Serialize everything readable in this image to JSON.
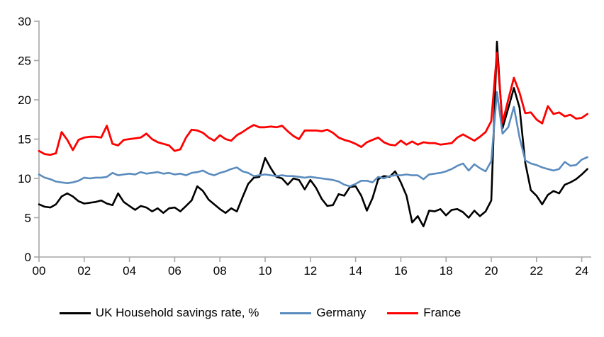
{
  "chart_data": {
    "type": "line",
    "title": "",
    "xlabel": "",
    "ylabel": "",
    "x_unit": "year (quarterly data)",
    "x_range": [
      2000.0,
      2024.25
    ],
    "ylim": [
      0,
      30
    ],
    "y_ticks": [
      0,
      5,
      10,
      15,
      20,
      25,
      30
    ],
    "x_tick_labels": [
      "00",
      "02",
      "04",
      "06",
      "08",
      "10",
      "12",
      "14",
      "16",
      "18",
      "20",
      "22",
      "24"
    ],
    "grid": "off",
    "legend_position": "bottom-center",
    "axis_color": "#a6a6a6",
    "tick_label_color": "#000000",
    "series": [
      {
        "name": "UK Household savings rate, %",
        "color": "#000000",
        "values": [
          6.7,
          6.4,
          6.3,
          6.7,
          7.7,
          8.1,
          7.7,
          7.1,
          6.8,
          6.9,
          7.0,
          7.2,
          6.8,
          6.6,
          8.1,
          7.0,
          6.5,
          6.0,
          6.5,
          6.3,
          5.8,
          6.2,
          5.6,
          6.2,
          6.3,
          5.8,
          6.5,
          7.2,
          9.0,
          8.4,
          7.3,
          6.7,
          6.1,
          5.6,
          6.2,
          5.8,
          7.6,
          9.3,
          10.1,
          10.2,
          12.6,
          11.3,
          10.2,
          10.0,
          9.2,
          10.0,
          9.8,
          8.6,
          9.8,
          8.8,
          7.4,
          6.5,
          6.6,
          8.0,
          7.8,
          8.9,
          9.0,
          7.8,
          5.9,
          7.5,
          9.9,
          10.3,
          10.2,
          10.9,
          9.5,
          7.8,
          4.4,
          5.2,
          3.9,
          5.9,
          5.8,
          6.1,
          5.3,
          6.0,
          6.1,
          5.7,
          5.0,
          5.9,
          5.2,
          5.8,
          7.2,
          27.4,
          16.4,
          18.9,
          21.5,
          19.0,
          12.0,
          8.5,
          7.8,
          6.7,
          7.9,
          8.4,
          8.1,
          9.2,
          9.5,
          9.9,
          10.5,
          11.2
        ]
      },
      {
        "name": "Germany",
        "color": "#5b8cbe",
        "values": [
          10.5,
          10.1,
          9.9,
          9.6,
          9.5,
          9.4,
          9.5,
          9.7,
          10.1,
          10.0,
          10.1,
          10.1,
          10.2,
          10.7,
          10.4,
          10.5,
          10.6,
          10.5,
          10.8,
          10.6,
          10.7,
          10.8,
          10.6,
          10.7,
          10.5,
          10.6,
          10.4,
          10.7,
          10.8,
          11.0,
          10.6,
          10.4,
          10.7,
          10.9,
          11.2,
          11.4,
          10.9,
          10.7,
          10.3,
          10.4,
          10.5,
          10.4,
          10.3,
          10.4,
          10.3,
          10.3,
          10.2,
          10.1,
          10.2,
          10.1,
          10.0,
          9.9,
          9.8,
          9.6,
          9.2,
          9.0,
          9.3,
          9.7,
          9.7,
          9.5,
          10.2,
          10.0,
          10.3,
          10.4,
          10.4,
          10.5,
          10.4,
          10.4,
          9.9,
          10.5,
          10.6,
          10.7,
          10.9,
          11.2,
          11.6,
          11.9,
          11.0,
          11.8,
          11.3,
          10.9,
          12.2,
          21.0,
          15.7,
          16.5,
          19.1,
          15.2,
          12.3,
          11.9,
          11.7,
          11.4,
          11.2,
          11.0,
          11.2,
          12.1,
          11.6,
          11.7,
          12.4,
          12.7
        ]
      },
      {
        "name": "France",
        "color": "#ff0000",
        "values": [
          13.5,
          13.1,
          13.0,
          13.2,
          15.9,
          14.9,
          13.6,
          14.9,
          15.2,
          15.3,
          15.3,
          15.2,
          16.7,
          14.4,
          14.2,
          14.9,
          15.0,
          15.1,
          15.2,
          15.7,
          15.0,
          14.6,
          14.4,
          14.2,
          13.5,
          13.7,
          15.2,
          16.2,
          16.1,
          15.8,
          15.2,
          14.8,
          15.5,
          15.0,
          14.8,
          15.5,
          15.9,
          16.4,
          16.8,
          16.5,
          16.5,
          16.6,
          16.5,
          16.7,
          16.0,
          15.4,
          15.0,
          16.1,
          16.1,
          16.1,
          16.0,
          16.2,
          15.8,
          15.2,
          14.9,
          14.7,
          14.4,
          14.0,
          14.6,
          14.9,
          15.2,
          14.6,
          14.3,
          14.2,
          14.8,
          14.3,
          14.7,
          14.3,
          14.6,
          14.5,
          14.5,
          14.3,
          14.4,
          14.5,
          15.2,
          15.6,
          15.2,
          14.8,
          15.3,
          15.9,
          17.3,
          26.0,
          17.1,
          20.0,
          22.8,
          20.9,
          18.3,
          18.4,
          17.5,
          17.0,
          19.2,
          18.2,
          18.4,
          17.9,
          18.1,
          17.6,
          17.7,
          18.2
        ]
      }
    ]
  },
  "legend": {
    "items": [
      {
        "label": "UK Household savings rate, %"
      },
      {
        "label": "Germany"
      },
      {
        "label": "France"
      }
    ]
  }
}
